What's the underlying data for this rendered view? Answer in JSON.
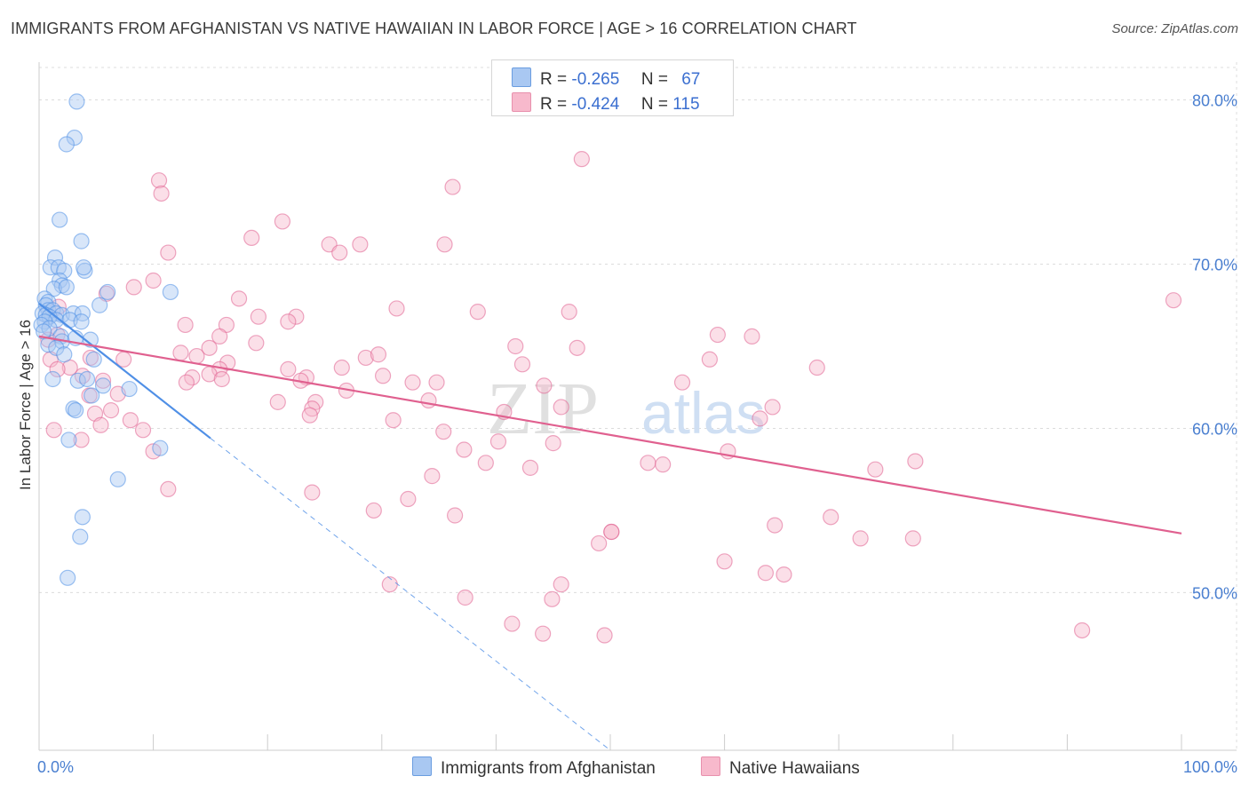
{
  "title": "IMMIGRANTS FROM AFGHANISTAN VS NATIVE HAWAIIAN IN LABOR FORCE | AGE > 16 CORRELATION CHART",
  "source": "Source: ZipAtlas.com",
  "watermark": {
    "zip": "ZIP",
    "atlas": "atlas"
  },
  "legend_top": {
    "rows": [
      {
        "r_label": "R =",
        "r_value": "-0.265",
        "n_label": "N =",
        "n_value": "67",
        "color": "#a9c8f2",
        "border": "#6a9de0"
      },
      {
        "r_label": "R =",
        "r_value": "-0.424",
        "n_label": "N =",
        "n_value": "115",
        "color": "#f7b9cc",
        "border": "#e890ad"
      }
    ]
  },
  "legend_bottom": [
    {
      "label": "Immigrants from Afghanistan",
      "color": "#a9c8f2",
      "border": "#6a9de0"
    },
    {
      "label": "Native Hawaiians",
      "color": "#f7b9cc",
      "border": "#e890ad"
    }
  ],
  "chart_data": {
    "type": "scatter",
    "title": "IMMIGRANTS FROM AFGHANISTAN VS NATIVE HAWAIIAN IN LABOR FORCE | AGE > 16 CORRELATION CHART",
    "xlabel": "",
    "ylabel": "In Labor Force | Age > 16",
    "xlim": [
      0,
      100
    ],
    "ylim": [
      40.4,
      82.3
    ],
    "x_tick_labels": [
      "0.0%",
      "100.0%"
    ],
    "y_ticks": [
      50,
      60,
      70,
      80
    ],
    "y_tick_labels": [
      "50.0%",
      "60.0%",
      "70.0%",
      "80.0%"
    ],
    "grid": true,
    "series": [
      {
        "name": "Immigrants from Afghanistan",
        "color": "#4f8fe6",
        "fill": "#a9c8f2",
        "trend": {
          "x0": 0,
          "y0": 67.6,
          "x1": 15,
          "y1": 59.4,
          "dashed_to_x": 50,
          "dashed_to_y": 40.4
        },
        "points": [
          [
            3.3,
            79.9
          ],
          [
            3.1,
            77.7
          ],
          [
            2.4,
            77.3
          ],
          [
            1.8,
            72.7
          ],
          [
            3.7,
            71.4
          ],
          [
            1.4,
            70.4
          ],
          [
            1.0,
            69.8
          ],
          [
            1.7,
            69.8
          ],
          [
            2.2,
            69.6
          ],
          [
            4.0,
            69.6
          ],
          [
            3.9,
            69.8
          ],
          [
            1.8,
            69.0
          ],
          [
            2.0,
            68.7
          ],
          [
            1.3,
            68.5
          ],
          [
            2.4,
            68.6
          ],
          [
            6.0,
            68.3
          ],
          [
            11.5,
            68.3
          ],
          [
            0.5,
            67.9
          ],
          [
            0.8,
            67.7
          ],
          [
            5.3,
            67.5
          ],
          [
            0.6,
            67.5
          ],
          [
            0.8,
            67.2
          ],
          [
            1.2,
            67.2
          ],
          [
            1.5,
            67.0
          ],
          [
            0.3,
            67.0
          ],
          [
            0.6,
            66.9
          ],
          [
            2.0,
            66.9
          ],
          [
            3.0,
            67.0
          ],
          [
            3.8,
            67.0
          ],
          [
            0.9,
            66.8
          ],
          [
            1.5,
            66.6
          ],
          [
            2.7,
            66.6
          ],
          [
            0.5,
            66.5
          ],
          [
            3.7,
            66.5
          ],
          [
            0.2,
            66.3
          ],
          [
            0.9,
            66.1
          ],
          [
            0.4,
            65.9
          ],
          [
            1.9,
            65.6
          ],
          [
            2.0,
            65.3
          ],
          [
            4.5,
            65.4
          ],
          [
            3.2,
            65.5
          ],
          [
            0.8,
            65.1
          ],
          [
            1.5,
            64.9
          ],
          [
            2.2,
            64.5
          ],
          [
            4.8,
            64.2
          ],
          [
            1.2,
            63.0
          ],
          [
            3.4,
            62.9
          ],
          [
            4.2,
            63.0
          ],
          [
            5.6,
            62.6
          ],
          [
            7.9,
            62.4
          ],
          [
            4.6,
            62.0
          ],
          [
            3.0,
            61.2
          ],
          [
            3.2,
            61.1
          ],
          [
            2.6,
            59.3
          ],
          [
            10.6,
            58.8
          ],
          [
            6.9,
            56.9
          ],
          [
            3.8,
            54.6
          ],
          [
            3.6,
            53.4
          ],
          [
            2.5,
            50.9
          ]
        ]
      },
      {
        "name": "Native Hawaiians",
        "color": "#e0608f",
        "fill": "#f7b9cc",
        "trend": {
          "x0": 0,
          "y0": 65.6,
          "x1": 100,
          "y1": 53.6
        },
        "points": [
          [
            47.5,
            76.4
          ],
          [
            36.2,
            74.7
          ],
          [
            10.5,
            75.1
          ],
          [
            10.7,
            74.3
          ],
          [
            21.3,
            72.6
          ],
          [
            18.6,
            71.6
          ],
          [
            25.4,
            71.2
          ],
          [
            28.1,
            71.2
          ],
          [
            35.5,
            71.2
          ],
          [
            26.3,
            70.7
          ],
          [
            11.3,
            70.7
          ],
          [
            10.0,
            69.0
          ],
          [
            8.3,
            68.6
          ],
          [
            5.9,
            68.2
          ],
          [
            17.5,
            67.9
          ],
          [
            1.7,
            67.4
          ],
          [
            31.3,
            67.3
          ],
          [
            38.4,
            67.1
          ],
          [
            46.4,
            67.1
          ],
          [
            19.2,
            66.8
          ],
          [
            22.5,
            66.8
          ],
          [
            21.8,
            66.5
          ],
          [
            16.4,
            66.3
          ],
          [
            12.8,
            66.3
          ],
          [
            1.6,
            65.7
          ],
          [
            15.8,
            65.6
          ],
          [
            59.4,
            65.7
          ],
          [
            62.4,
            65.6
          ],
          [
            0.8,
            65.4
          ],
          [
            19.0,
            65.2
          ],
          [
            41.7,
            65.0
          ],
          [
            14.9,
            64.9
          ],
          [
            47.1,
            64.9
          ],
          [
            12.4,
            64.6
          ],
          [
            1.0,
            64.2
          ],
          [
            4.5,
            64.3
          ],
          [
            7.4,
            64.2
          ],
          [
            13.8,
            64.4
          ],
          [
            28.6,
            64.3
          ],
          [
            29.7,
            64.5
          ],
          [
            58.7,
            64.2
          ],
          [
            16.5,
            64.0
          ],
          [
            26.5,
            63.7
          ],
          [
            68.1,
            63.7
          ],
          [
            2.7,
            63.7
          ],
          [
            15.8,
            63.6
          ],
          [
            21.8,
            63.6
          ],
          [
            14.9,
            63.3
          ],
          [
            42.3,
            63.9
          ],
          [
            30.1,
            63.2
          ],
          [
            3.8,
            63.2
          ],
          [
            13.4,
            63.1
          ],
          [
            16.0,
            63.0
          ],
          [
            23.4,
            63.1
          ],
          [
            5.6,
            62.9
          ],
          [
            12.9,
            62.8
          ],
          [
            22.9,
            62.9
          ],
          [
            32.7,
            62.8
          ],
          [
            34.8,
            62.8
          ],
          [
            56.3,
            62.8
          ],
          [
            44.2,
            62.6
          ],
          [
            26.9,
            62.3
          ],
          [
            4.4,
            62.0
          ],
          [
            6.9,
            62.1
          ],
          [
            24.2,
            61.6
          ],
          [
            20.9,
            61.6
          ],
          [
            34.1,
            61.7
          ],
          [
            6.3,
            61.1
          ],
          [
            23.9,
            61.2
          ],
          [
            45.7,
            61.3
          ],
          [
            64.2,
            61.3
          ],
          [
            4.9,
            60.9
          ],
          [
            23.7,
            60.8
          ],
          [
            40.7,
            61.0
          ],
          [
            63.1,
            60.6
          ],
          [
            8.0,
            60.5
          ],
          [
            31.0,
            60.5
          ],
          [
            5.4,
            60.2
          ],
          [
            35.4,
            59.8
          ],
          [
            1.3,
            59.9
          ],
          [
            9.1,
            59.9
          ],
          [
            3.7,
            59.3
          ],
          [
            45.0,
            59.1
          ],
          [
            40.2,
            59.2
          ],
          [
            37.2,
            58.7
          ],
          [
            10.0,
            58.6
          ],
          [
            60.3,
            58.6
          ],
          [
            39.1,
            57.9
          ],
          [
            43.0,
            57.6
          ],
          [
            53.3,
            57.9
          ],
          [
            54.6,
            57.8
          ],
          [
            76.7,
            58.0
          ],
          [
            73.2,
            57.5
          ],
          [
            34.4,
            57.1
          ],
          [
            11.3,
            56.3
          ],
          [
            23.9,
            56.1
          ],
          [
            32.3,
            55.7
          ],
          [
            29.3,
            55.0
          ],
          [
            50.1,
            53.7
          ],
          [
            64.4,
            54.1
          ],
          [
            69.3,
            54.6
          ],
          [
            50.1,
            53.7
          ],
          [
            36.4,
            54.7
          ],
          [
            49.0,
            53.0
          ],
          [
            76.5,
            53.3
          ],
          [
            71.9,
            53.3
          ],
          [
            60.0,
            51.9
          ],
          [
            63.6,
            51.2
          ],
          [
            65.2,
            51.1
          ],
          [
            30.7,
            50.5
          ],
          [
            45.7,
            50.5
          ],
          [
            37.3,
            49.7
          ],
          [
            44.9,
            49.6
          ],
          [
            41.4,
            48.1
          ],
          [
            44.1,
            47.5
          ],
          [
            49.5,
            47.4
          ],
          [
            91.3,
            47.7
          ],
          [
            99.3,
            67.8
          ],
          [
            1.6,
            63.6
          ]
        ]
      }
    ]
  }
}
